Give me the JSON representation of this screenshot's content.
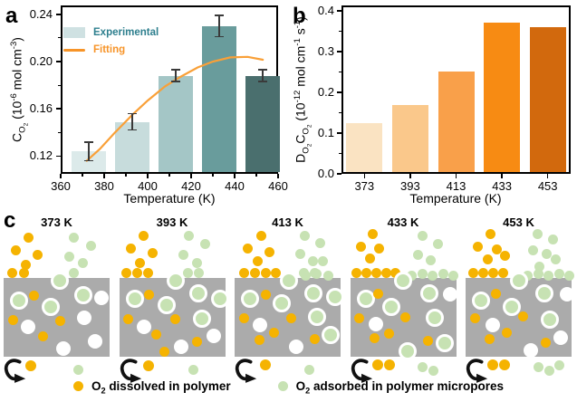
{
  "panels": {
    "a_label": "a",
    "b_label": "b",
    "c_label": "c"
  },
  "chart_data": [
    {
      "id": "a",
      "type": "bar",
      "categories": [
        373,
        393,
        413,
        433,
        453
      ],
      "values": [
        0.124,
        0.149,
        0.188,
        0.23,
        0.188
      ],
      "errors": [
        0.008,
        0.007,
        0.005,
        0.009,
        0.005
      ],
      "bar_colors": [
        "#DCEAEA",
        "#C7DCDC",
        "#A4C6C6",
        "#699C9C",
        "#4A6F6E"
      ],
      "xlabel": "Temperature (K)",
      "ylabel": "C_{O_{2}} (10^{-6} mol cm^{-3})",
      "xlim": [
        360,
        460
      ],
      "xticks": [
        360,
        380,
        400,
        420,
        440,
        460
      ],
      "xminor": [
        370,
        390,
        410,
        430,
        450
      ],
      "ylim": [
        0.105,
        0.2475
      ],
      "yticks": [
        0.12,
        0.16,
        0.2,
        0.24
      ],
      "ytick_labels": [
        "0.12",
        "0.16",
        "0.20",
        "0.24"
      ],
      "yminor": [
        0.14,
        0.18,
        0.22
      ],
      "legend": [
        {
          "label": "Experimental",
          "type": "swatch",
          "color": "#CFE1E2",
          "text_color": "#2E7F8E"
        },
        {
          "label": "Fitting",
          "type": "line",
          "color": "#F79428",
          "text_color": "#F79428"
        }
      ],
      "fit_series": {
        "name": "Fitting",
        "color": "#F9A038",
        "points": [
          [
            372,
            0.116
          ],
          [
            378,
            0.126
          ],
          [
            385,
            0.14
          ],
          [
            393,
            0.155
          ],
          [
            400,
            0.167
          ],
          [
            408,
            0.179
          ],
          [
            415,
            0.187
          ],
          [
            423,
            0.195
          ],
          [
            430,
            0.2
          ],
          [
            438,
            0.2035
          ],
          [
            446,
            0.204
          ],
          [
            453,
            0.2015
          ]
        ]
      }
    },
    {
      "id": "b",
      "type": "bar",
      "categories": [
        373,
        393,
        413,
        433,
        453
      ],
      "values": [
        0.125,
        0.168,
        0.252,
        0.37,
        0.36
      ],
      "bar_colors": [
        "#FAE3C2",
        "#FAC88B",
        "#F9A04A",
        "#F78B13",
        "#D2690D"
      ],
      "xlabel": "Temperature (K)",
      "ylabel": "D_{O_{2}}C_{O_{2}} (10^{-12} mol cm^{-1} s^{-1})",
      "ylim": [
        0,
        0.413
      ],
      "yticks": [
        0.0,
        0.1,
        0.2,
        0.3,
        0.4
      ],
      "ytick_labels": [
        "0.0",
        "0.1",
        "0.2",
        "0.3",
        "0.4"
      ],
      "yminor": [
        0.05,
        0.15,
        0.25,
        0.35
      ]
    }
  ],
  "diagram": {
    "colors": {
      "polymer": "#ABABAB",
      "o2_dissolved": "#F5B301",
      "o2_adsorbed": "#C7E2B3",
      "pore": "#FFFFFF",
      "arrow": "#111111"
    },
    "legend": [
      {
        "label": "O_{2} dissolved in polymer",
        "color": "#F5B301"
      },
      {
        "label": "O_{2} adsorbed in polymer micropores",
        "color": "#C7E2B3"
      }
    ],
    "panels": [
      {
        "label": "373 K",
        "gas_yellow": [
          [
            27,
            24
          ],
          [
            13,
            38
          ],
          [
            37,
            43
          ],
          [
            24,
            54
          ],
          [
            9,
            63
          ],
          [
            22,
            63
          ]
        ],
        "gas_green": [
          [
            77,
            24
          ],
          [
            96,
            33
          ],
          [
            72,
            45
          ],
          [
            87,
            52
          ],
          [
            77,
            63
          ]
        ],
        "edge_green": [],
        "surface_ads": [
          [
            59,
            69
          ]
        ],
        "ads": [
          [
            14,
            91
          ],
          [
            49,
            98
          ],
          [
            85,
            85
          ]
        ],
        "pore": [
          [
            108,
            91
          ],
          [
            27,
            123
          ],
          [
            89,
            113
          ],
          [
            66,
            147
          ],
          [
            101,
            139
          ]
        ],
        "o2": [
          [
            33,
            88
          ],
          [
            10,
            115
          ],
          [
            62,
            116
          ],
          [
            43,
            133
          ]
        ],
        "below_yellow": [
          [
            30,
            166
          ]
        ],
        "below_green": [
          [
            82,
            170
          ]
        ]
      },
      {
        "label": "393 K",
        "gas_yellow": [
          [
            27,
            22
          ],
          [
            13,
            36
          ],
          [
            37,
            41
          ],
          [
            23,
            52
          ],
          [
            8,
            63
          ],
          [
            20,
            63
          ],
          [
            32,
            63
          ]
        ],
        "gas_green": [
          [
            77,
            22
          ],
          [
            95,
            31
          ],
          [
            71,
            43
          ],
          [
            86,
            52
          ],
          [
            76,
            63
          ],
          [
            88,
            63
          ]
        ],
        "edge_green": [],
        "surface_ads": [
          [
            59,
            69
          ]
        ],
        "ads": [
          [
            14,
            89
          ],
          [
            49,
            96
          ],
          [
            84,
            83
          ],
          [
            108,
            89
          ],
          [
            88,
            111
          ]
        ],
        "pore": [
          [
            27,
            123
          ],
          [
            68,
            145
          ],
          [
            104,
            133
          ]
        ],
        "o2": [
          [
            33,
            87
          ],
          [
            10,
            114
          ],
          [
            62,
            114
          ],
          [
            41,
            131
          ],
          [
            86,
            139
          ],
          [
            50,
            150
          ]
        ],
        "below_yellow": [
          [
            32,
            166
          ]
        ],
        "below_green": [
          [
            82,
            170
          ]
        ]
      },
      {
        "label": "413 K",
        "gas_yellow": [
          [
            29,
            22
          ],
          [
            14,
            36
          ],
          [
            38,
            40
          ],
          [
            25,
            50
          ],
          [
            10,
            63
          ],
          [
            22,
            63
          ],
          [
            34,
            63
          ],
          [
            45,
            63
          ]
        ],
        "gas_green": [
          [
            77,
            22
          ],
          [
            94,
            30
          ],
          [
            72,
            42
          ],
          [
            86,
            50
          ],
          [
            97,
            50
          ],
          [
            76,
            63
          ],
          [
            88,
            63
          ]
        ],
        "edge_green": [
          [
            78,
            66
          ],
          [
            90,
            64
          ],
          [
            103,
            66
          ]
        ],
        "surface_ads": [
          [
            57,
            69
          ]
        ],
        "ads": [
          [
            14,
            89
          ],
          [
            49,
            94
          ],
          [
            84,
            83
          ],
          [
            108,
            87
          ],
          [
            88,
            109
          ],
          [
            103,
            129
          ]
        ],
        "pore": [
          [
            28,
            121
          ],
          [
            68,
            145
          ]
        ],
        "o2": [
          [
            34,
            87
          ],
          [
            10,
            113
          ],
          [
            62,
            113
          ],
          [
            43,
            129
          ],
          [
            27,
            137
          ],
          [
            88,
            136
          ]
        ],
        "below_yellow": [
          [
            34,
            165
          ]
        ],
        "below_green": [
          [
            82,
            170
          ]
        ]
      },
      {
        "label": "433 K",
        "gas_yellow": [
          [
            25,
            20
          ],
          [
            12,
            34
          ],
          [
            32,
            36
          ],
          [
            22,
            47
          ],
          [
            7,
            63
          ],
          [
            18,
            63
          ],
          [
            29,
            63
          ],
          [
            40,
            63
          ],
          [
            50,
            63
          ]
        ],
        "gas_green": [
          [
            80,
            22
          ],
          [
            97,
            31
          ],
          [
            75,
            43
          ],
          [
            89,
            49
          ]
        ],
        "edge_green": [
          [
            68,
            66
          ],
          [
            80,
            64
          ],
          [
            91,
            66
          ],
          [
            103,
            64
          ],
          [
            114,
            66
          ]
        ],
        "surface_ads": [
          [
            55,
            69
          ]
        ],
        "ads": [
          [
            14,
            89
          ],
          [
            42,
            98
          ],
          [
            84,
            83
          ],
          [
            90,
            110
          ],
          [
            101,
            138
          ],
          [
            60,
            147
          ]
        ],
        "pore": [
          [
            110,
            87
          ],
          [
            28,
            120
          ]
        ],
        "o2": [
          [
            31,
            86
          ],
          [
            10,
            113
          ],
          [
            61,
            112
          ],
          [
            43,
            130
          ],
          [
            86,
            138
          ],
          [
            27,
            135
          ]
        ],
        "below_yellow": [
          [
            30,
            165
          ],
          [
            43,
            165
          ]
        ],
        "below_green": [
          [
            80,
            167
          ],
          [
            92,
            171
          ]
        ]
      },
      {
        "label": "453 K",
        "gas_yellow": [
          [
            27,
            20
          ],
          [
            13,
            34
          ],
          [
            34,
            37
          ],
          [
            24,
            48
          ],
          [
            43,
            44
          ],
          [
            8,
            63
          ],
          [
            19,
            63
          ],
          [
            30,
            63
          ],
          [
            41,
            63
          ]
        ],
        "gas_green": [
          [
            79,
            20
          ],
          [
            96,
            26
          ],
          [
            74,
            38
          ],
          [
            89,
            42
          ],
          [
            99,
            48
          ],
          [
            81,
            56
          ]
        ],
        "edge_green": [
          [
            68,
            66
          ],
          [
            80,
            64
          ],
          [
            91,
            66
          ],
          [
            103,
            64
          ],
          [
            114,
            66
          ]
        ],
        "surface_ads": [
          [
            56,
            69
          ]
        ],
        "ads": [
          [
            14,
            91
          ],
          [
            48,
            98
          ],
          [
            84,
            83
          ],
          [
            90,
            112
          ]
        ],
        "pore": [
          [
            112,
            87
          ],
          [
            30,
            121
          ],
          [
            105,
            135
          ],
          [
            72,
            149
          ]
        ],
        "o2": [
          [
            33,
            86
          ],
          [
            10,
            113
          ],
          [
            63,
            111
          ],
          [
            45,
            129
          ],
          [
            88,
            140
          ],
          [
            26,
            136
          ]
        ],
        "below_yellow": [
          [
            30,
            165
          ],
          [
            43,
            165
          ]
        ],
        "below_green": [
          [
            80,
            167
          ],
          [
            92,
            171
          ],
          [
            103,
            165
          ]
        ]
      }
    ]
  }
}
